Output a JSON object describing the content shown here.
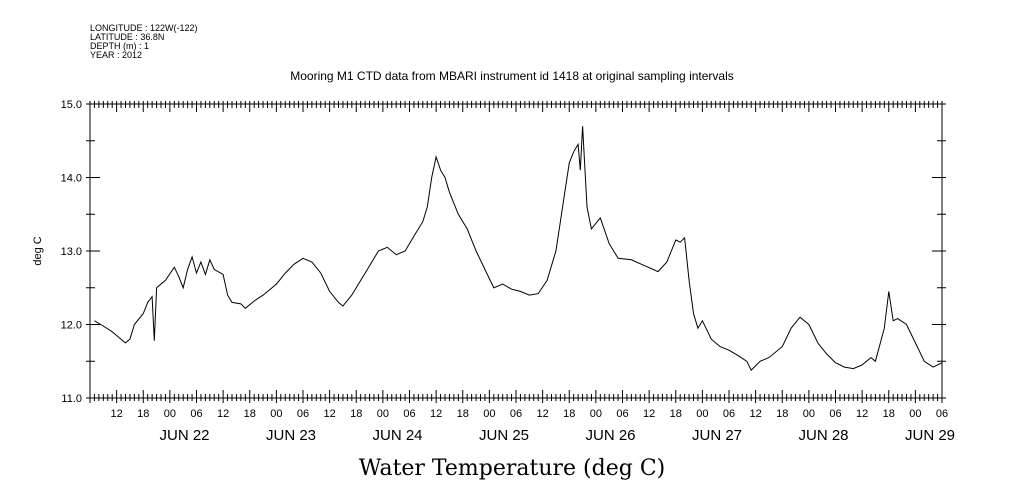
{
  "meta": {
    "longitude": "LONGITUDE : 122W(-122)",
    "latitude": "LATITUDE : 36.8N",
    "depth": "DEPTH (m) : 1",
    "year": "YEAR : 2012"
  },
  "chart_data": {
    "type": "line",
    "title": "Mooring M1 CTD data from MBARI instrument id 1418 at original sampling intervals",
    "xlabel": "Water Temperature (deg C)",
    "ylabel": "deg C",
    "ylim": [
      11.0,
      15.0
    ],
    "yticks": [
      "11.0",
      "12.0",
      "13.0",
      "14.0",
      "15.0"
    ],
    "xlim": [
      "2012-06-21T06:00",
      "2012-06-29T06:00"
    ],
    "x_hour_ticks": [
      "12",
      "18",
      "00",
      "06",
      "12",
      "18",
      "00",
      "06",
      "12",
      "18",
      "00",
      "06",
      "12",
      "18",
      "00",
      "06",
      "12",
      "18",
      "00",
      "06",
      "12",
      "18",
      "00",
      "06",
      "12",
      "18",
      "00",
      "06",
      "12",
      "18",
      "00",
      "06"
    ],
    "x_day_labels": [
      "JUN 22",
      "JUN 23",
      "JUN 24",
      "JUN 25",
      "JUN 26",
      "JUN 27",
      "JUN 28",
      "JUN 29"
    ],
    "grid": false,
    "series": [
      {
        "name": "",
        "color": "#000000",
        "points": [
          [
            "2012-06-21 07:00",
            12.05
          ],
          [
            "2012-06-21 09:00",
            11.98
          ],
          [
            "2012-06-21 11:00",
            11.9
          ],
          [
            "2012-06-21 13:00",
            11.8
          ],
          [
            "2012-06-21 14:00",
            11.75
          ],
          [
            "2012-06-21 15:00",
            11.8
          ],
          [
            "2012-06-21 16:00",
            12.0
          ],
          [
            "2012-06-21 18:00",
            12.15
          ],
          [
            "2012-06-21 19:00",
            12.3
          ],
          [
            "2012-06-21 20:00",
            12.38
          ],
          [
            "2012-06-21 20:30",
            11.78
          ],
          [
            "2012-06-21 21:00",
            12.5
          ],
          [
            "2012-06-21 23:00",
            12.6
          ],
          [
            "2012-06-22 01:00",
            12.78
          ],
          [
            "2012-06-22 02:00",
            12.65
          ],
          [
            "2012-06-22 03:00",
            12.5
          ],
          [
            "2012-06-22 04:00",
            12.75
          ],
          [
            "2012-06-22 05:00",
            12.92
          ],
          [
            "2012-06-22 06:00",
            12.7
          ],
          [
            "2012-06-22 07:00",
            12.85
          ],
          [
            "2012-06-22 08:00",
            12.68
          ],
          [
            "2012-06-22 09:00",
            12.88
          ],
          [
            "2012-06-22 10:00",
            12.75
          ],
          [
            "2012-06-22 12:00",
            12.68
          ],
          [
            "2012-06-22 13:00",
            12.4
          ],
          [
            "2012-06-22 14:00",
            12.3
          ],
          [
            "2012-06-22 16:00",
            12.28
          ],
          [
            "2012-06-22 17:00",
            12.22
          ],
          [
            "2012-06-22 19:00",
            12.32
          ],
          [
            "2012-06-22 21:00",
            12.4
          ],
          [
            "2012-06-23 00:00",
            12.55
          ],
          [
            "2012-06-23 02:00",
            12.7
          ],
          [
            "2012-06-23 04:00",
            12.82
          ],
          [
            "2012-06-23 06:00",
            12.9
          ],
          [
            "2012-06-23 08:00",
            12.85
          ],
          [
            "2012-06-23 10:00",
            12.7
          ],
          [
            "2012-06-23 12:00",
            12.45
          ],
          [
            "2012-06-23 14:00",
            12.3
          ],
          [
            "2012-06-23 15:00",
            12.25
          ],
          [
            "2012-06-23 17:00",
            12.4
          ],
          [
            "2012-06-23 19:00",
            12.6
          ],
          [
            "2012-06-23 21:00",
            12.8
          ],
          [
            "2012-06-23 23:00",
            13.0
          ],
          [
            "2012-06-24 01:00",
            13.05
          ],
          [
            "2012-06-24 03:00",
            12.95
          ],
          [
            "2012-06-24 05:00",
            13.0
          ],
          [
            "2012-06-24 07:00",
            13.2
          ],
          [
            "2012-06-24 09:00",
            13.4
          ],
          [
            "2012-06-24 10:00",
            13.6
          ],
          [
            "2012-06-24 11:00",
            14.0
          ],
          [
            "2012-06-24 12:00",
            14.28
          ],
          [
            "2012-06-24 13:00",
            14.1
          ],
          [
            "2012-06-24 14:00",
            14.0
          ],
          [
            "2012-06-24 15:00",
            13.8
          ],
          [
            "2012-06-24 17:00",
            13.5
          ],
          [
            "2012-06-24 19:00",
            13.3
          ],
          [
            "2012-06-24 21:00",
            13.0
          ],
          [
            "2012-06-24 23:00",
            12.75
          ],
          [
            "2012-06-25 01:00",
            12.5
          ],
          [
            "2012-06-25 03:00",
            12.55
          ],
          [
            "2012-06-25 05:00",
            12.48
          ],
          [
            "2012-06-25 07:00",
            12.45
          ],
          [
            "2012-06-25 09:00",
            12.4
          ],
          [
            "2012-06-25 11:00",
            12.42
          ],
          [
            "2012-06-25 13:00",
            12.6
          ],
          [
            "2012-06-25 15:00",
            13.0
          ],
          [
            "2012-06-25 16:00",
            13.4
          ],
          [
            "2012-06-25 17:00",
            13.8
          ],
          [
            "2012-06-25 18:00",
            14.2
          ],
          [
            "2012-06-25 19:00",
            14.35
          ],
          [
            "2012-06-25 20:00",
            14.45
          ],
          [
            "2012-06-25 20:30",
            14.1
          ],
          [
            "2012-06-25 21:00",
            14.7
          ],
          [
            "2012-06-25 22:00",
            13.6
          ],
          [
            "2012-06-25 23:00",
            13.3
          ],
          [
            "2012-06-26 01:00",
            13.45
          ],
          [
            "2012-06-26 03:00",
            13.1
          ],
          [
            "2012-06-26 05:00",
            12.9
          ],
          [
            "2012-06-26 08:00",
            12.88
          ],
          [
            "2012-06-26 11:00",
            12.8
          ],
          [
            "2012-06-26 14:00",
            12.72
          ],
          [
            "2012-06-26 16:00",
            12.85
          ],
          [
            "2012-06-26 17:00",
            13.0
          ],
          [
            "2012-06-26 18:00",
            13.15
          ],
          [
            "2012-06-26 19:00",
            13.12
          ],
          [
            "2012-06-26 20:00",
            13.18
          ],
          [
            "2012-06-26 21:00",
            12.6
          ],
          [
            "2012-06-26 22:00",
            12.15
          ],
          [
            "2012-06-26 23:00",
            11.95
          ],
          [
            "2012-06-27 00:00",
            12.05
          ],
          [
            "2012-06-27 02:00",
            11.8
          ],
          [
            "2012-06-27 04:00",
            11.7
          ],
          [
            "2012-06-27 06:00",
            11.65
          ],
          [
            "2012-06-27 08:00",
            11.58
          ],
          [
            "2012-06-27 10:00",
            11.5
          ],
          [
            "2012-06-27 11:00",
            11.38
          ],
          [
            "2012-06-27 13:00",
            11.5
          ],
          [
            "2012-06-27 15:00",
            11.55
          ],
          [
            "2012-06-27 18:00",
            11.7
          ],
          [
            "2012-06-27 20:00",
            11.95
          ],
          [
            "2012-06-27 22:00",
            12.1
          ],
          [
            "2012-06-28 00:00",
            12.0
          ],
          [
            "2012-06-28 02:00",
            11.75
          ],
          [
            "2012-06-28 04:00",
            11.6
          ],
          [
            "2012-06-28 06:00",
            11.48
          ],
          [
            "2012-06-28 08:00",
            11.42
          ],
          [
            "2012-06-28 10:00",
            11.4
          ],
          [
            "2012-06-28 12:00",
            11.45
          ],
          [
            "2012-06-28 14:00",
            11.55
          ],
          [
            "2012-06-28 15:00",
            11.5
          ],
          [
            "2012-06-28 17:00",
            11.95
          ],
          [
            "2012-06-28 18:00",
            12.45
          ],
          [
            "2012-06-28 19:00",
            12.05
          ],
          [
            "2012-06-28 20:00",
            12.08
          ],
          [
            "2012-06-28 22:00",
            12.0
          ],
          [
            "2012-06-29 00:00",
            11.75
          ],
          [
            "2012-06-29 02:00",
            11.5
          ],
          [
            "2012-06-29 04:00",
            11.42
          ],
          [
            "2012-06-29 06:00",
            11.48
          ]
        ]
      }
    ]
  }
}
